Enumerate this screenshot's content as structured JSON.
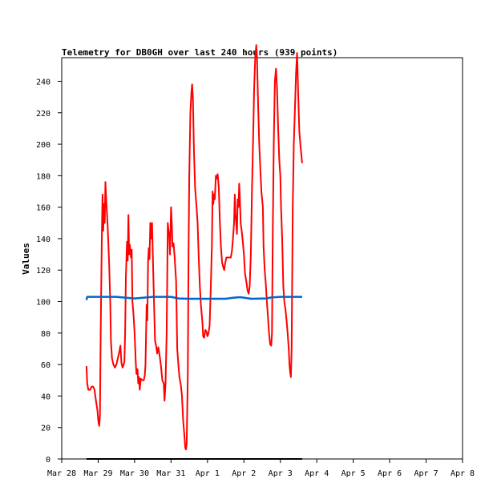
{
  "chart_data": {
    "type": "line",
    "title": "Telemetry for DB0GH over last 240 hours (939 points)",
    "xlabel": "",
    "ylabel": "Values",
    "x_start": "Mar 28",
    "x_ticks": [
      "Mar 28",
      "Mar 29",
      "Mar 30",
      "Mar 31",
      "Apr 1",
      "Apr 2",
      "Apr 3",
      "Apr 4",
      "Apr 5",
      "Apr 6",
      "Apr 7",
      "Apr 8"
    ],
    "ylim": [
      0,
      255
    ],
    "y_ticks": [
      0,
      20,
      40,
      60,
      80,
      100,
      120,
      140,
      160,
      180,
      200,
      220,
      240
    ],
    "grid": false,
    "legend": "none",
    "series": [
      {
        "color": "#ff0000",
        "points": [
          [
            0.68,
            59
          ],
          [
            0.7,
            48
          ],
          [
            0.73,
            44
          ],
          [
            0.78,
            44
          ],
          [
            0.82,
            46
          ],
          [
            0.86,
            46
          ],
          [
            0.9,
            44
          ],
          [
            0.94,
            37
          ],
          [
            0.98,
            31
          ],
          [
            1.01,
            23
          ],
          [
            1.03,
            21
          ],
          [
            1.05,
            28
          ],
          [
            1.07,
            80
          ],
          [
            1.1,
            140
          ],
          [
            1.12,
            168
          ],
          [
            1.14,
            145
          ],
          [
            1.16,
            162
          ],
          [
            1.18,
            150
          ],
          [
            1.2,
            176
          ],
          [
            1.22,
            165
          ],
          [
            1.26,
            148
          ],
          [
            1.3,
            125
          ],
          [
            1.33,
            100
          ],
          [
            1.35,
            75
          ],
          [
            1.38,
            64
          ],
          [
            1.42,
            60
          ],
          [
            1.46,
            58
          ],
          [
            1.5,
            60
          ],
          [
            1.54,
            64
          ],
          [
            1.58,
            68
          ],
          [
            1.61,
            72
          ],
          [
            1.64,
            61
          ],
          [
            1.67,
            58
          ],
          [
            1.7,
            60
          ],
          [
            1.72,
            62
          ],
          [
            1.74,
            80
          ],
          [
            1.76,
            115
          ],
          [
            1.79,
            138
          ],
          [
            1.81,
            126
          ],
          [
            1.83,
            155
          ],
          [
            1.85,
            130
          ],
          [
            1.87,
            136
          ],
          [
            1.9,
            128
          ],
          [
            1.92,
            133
          ],
          [
            1.94,
            100
          ],
          [
            1.97,
            92
          ],
          [
            2.0,
            80
          ],
          [
            2.03,
            62
          ],
          [
            2.05,
            54
          ],
          [
            2.08,
            57
          ],
          [
            2.1,
            48
          ],
          [
            2.12,
            52
          ],
          [
            2.14,
            44
          ],
          [
            2.17,
            51
          ],
          [
            2.21,
            50
          ],
          [
            2.25,
            50
          ],
          [
            2.28,
            53
          ],
          [
            2.3,
            60
          ],
          [
            2.33,
            98
          ],
          [
            2.35,
            88
          ],
          [
            2.37,
            125
          ],
          [
            2.39,
            134
          ],
          [
            2.41,
            127
          ],
          [
            2.43,
            150
          ],
          [
            2.46,
            140
          ],
          [
            2.48,
            150
          ],
          [
            2.51,
            120
          ],
          [
            2.54,
            92
          ],
          [
            2.56,
            75
          ],
          [
            2.59,
            72
          ],
          [
            2.62,
            67
          ],
          [
            2.65,
            71
          ],
          [
            2.68,
            67
          ],
          [
            2.72,
            60
          ],
          [
            2.76,
            50
          ],
          [
            2.8,
            48
          ],
          [
            2.82,
            37
          ],
          [
            2.85,
            48
          ],
          [
            2.88,
            80
          ],
          [
            2.91,
            150
          ],
          [
            2.93,
            145
          ],
          [
            2.95,
            143
          ],
          [
            2.97,
            130
          ],
          [
            3.0,
            160
          ],
          [
            3.02,
            150
          ],
          [
            3.04,
            135
          ],
          [
            3.07,
            137
          ],
          [
            3.1,
            128
          ],
          [
            3.14,
            113
          ],
          [
            3.17,
            70
          ],
          [
            3.2,
            60
          ],
          [
            3.23,
            52
          ],
          [
            3.27,
            47
          ],
          [
            3.3,
            40
          ],
          [
            3.33,
            25
          ],
          [
            3.36,
            17
          ],
          [
            3.39,
            7
          ],
          [
            3.41,
            6
          ],
          [
            3.43,
            10
          ],
          [
            3.46,
            55
          ],
          [
            3.48,
            130
          ],
          [
            3.5,
            180
          ],
          [
            3.53,
            220
          ],
          [
            3.56,
            233
          ],
          [
            3.58,
            238
          ],
          [
            3.6,
            230
          ],
          [
            3.63,
            195
          ],
          [
            3.66,
            172
          ],
          [
            3.7,
            160
          ],
          [
            3.73,
            150
          ],
          [
            3.76,
            128
          ],
          [
            3.79,
            110
          ],
          [
            3.82,
            98
          ],
          [
            3.86,
            87
          ],
          [
            3.88,
            78
          ],
          [
            3.91,
            77
          ],
          [
            3.94,
            82
          ],
          [
            3.97,
            81
          ],
          [
            4.0,
            78
          ],
          [
            4.03,
            80
          ],
          [
            4.06,
            85
          ],
          [
            4.09,
            108
          ],
          [
            4.12,
            135
          ],
          [
            4.14,
            170
          ],
          [
            4.16,
            162
          ],
          [
            4.18,
            168
          ],
          [
            4.2,
            165
          ],
          [
            4.23,
            180
          ],
          [
            4.25,
            178
          ],
          [
            4.28,
            181
          ],
          [
            4.31,
            173
          ],
          [
            4.34,
            150
          ],
          [
            4.37,
            135
          ],
          [
            4.4,
            125
          ],
          [
            4.43,
            122
          ],
          [
            4.46,
            120
          ],
          [
            4.49,
            125
          ],
          [
            4.52,
            128
          ],
          [
            4.56,
            128
          ],
          [
            4.6,
            128
          ],
          [
            4.64,
            128
          ],
          [
            4.67,
            132
          ],
          [
            4.7,
            140
          ],
          [
            4.73,
            150
          ],
          [
            4.75,
            168
          ],
          [
            4.77,
            155
          ],
          [
            4.79,
            150
          ],
          [
            4.81,
            143
          ],
          [
            4.83,
            165
          ],
          [
            4.85,
            160
          ],
          [
            4.87,
            175
          ],
          [
            4.89,
            165
          ],
          [
            4.91,
            150
          ],
          [
            4.94,
            145
          ],
          [
            4.97,
            138
          ],
          [
            5.0,
            130
          ],
          [
            5.03,
            118
          ],
          [
            5.07,
            112
          ],
          [
            5.1,
            107
          ],
          [
            5.13,
            105
          ],
          [
            5.16,
            110
          ],
          [
            5.19,
            130
          ],
          [
            5.22,
            170
          ],
          [
            5.25,
            200
          ],
          [
            5.28,
            235
          ],
          [
            5.31,
            255
          ],
          [
            5.34,
            263
          ],
          [
            5.36,
            255
          ],
          [
            5.39,
            225
          ],
          [
            5.42,
            200
          ],
          [
            5.45,
            185
          ],
          [
            5.48,
            170
          ],
          [
            5.52,
            160
          ],
          [
            5.54,
            135
          ],
          [
            5.57,
            120
          ],
          [
            5.6,
            112
          ],
          [
            5.63,
            100
          ],
          [
            5.66,
            90
          ],
          [
            5.69,
            80
          ],
          [
            5.72,
            73
          ],
          [
            5.75,
            72
          ],
          [
            5.77,
            80
          ],
          [
            5.79,
            140
          ],
          [
            5.82,
            200
          ],
          [
            5.85,
            240
          ],
          [
            5.88,
            248
          ],
          [
            5.91,
            235
          ],
          [
            5.94,
            210
          ],
          [
            5.97,
            190
          ],
          [
            6.0,
            180
          ],
          [
            6.02,
            160
          ],
          [
            6.05,
            140
          ],
          [
            6.08,
            110
          ],
          [
            6.11,
            100
          ],
          [
            6.14,
            95
          ],
          [
            6.17,
            88
          ],
          [
            6.2,
            80
          ],
          [
            6.23,
            70
          ],
          [
            6.25,
            60
          ],
          [
            6.27,
            55
          ],
          [
            6.29,
            52
          ],
          [
            6.31,
            70
          ],
          [
            6.34,
            160
          ],
          [
            6.37,
            200
          ],
          [
            6.4,
            222
          ],
          [
            6.43,
            245
          ],
          [
            6.46,
            258
          ],
          [
            6.49,
            232
          ],
          [
            6.52,
            208
          ],
          [
            6.55,
            200
          ],
          [
            6.57,
            195
          ],
          [
            6.59,
            190
          ],
          [
            6.6,
            188
          ]
        ]
      },
      {
        "color": "#0066cc",
        "points": [
          [
            0.68,
            101
          ],
          [
            0.7,
            103
          ],
          [
            1.0,
            103
          ],
          [
            1.5,
            103
          ],
          [
            2.0,
            102
          ],
          [
            2.5,
            103
          ],
          [
            3.0,
            103
          ],
          [
            3.2,
            102
          ],
          [
            3.5,
            101.8
          ],
          [
            4.0,
            101.8
          ],
          [
            4.5,
            101.8
          ],
          [
            4.7,
            102.4
          ],
          [
            4.9,
            102.8
          ],
          [
            5.2,
            101.8
          ],
          [
            5.6,
            102
          ],
          [
            5.75,
            102.6
          ],
          [
            6.0,
            103
          ],
          [
            6.4,
            103
          ],
          [
            6.6,
            103
          ]
        ]
      },
      {
        "color": "#000000",
        "points": [
          [
            0.68,
            0
          ],
          [
            6.6,
            0
          ]
        ]
      }
    ]
  }
}
